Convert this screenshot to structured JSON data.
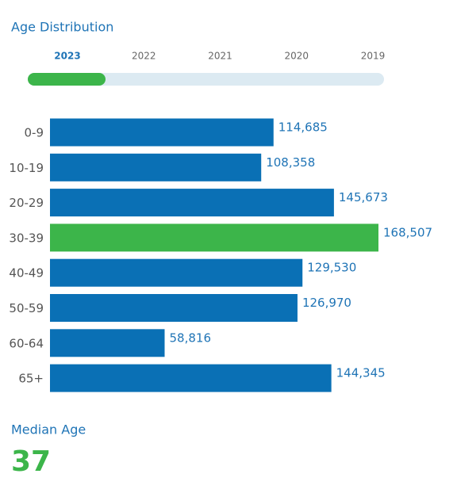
{
  "chart_data": {
    "type": "bar",
    "orientation": "horizontal",
    "title": "Age Distribution",
    "categories": [
      "0-9",
      "10-19",
      "20-29",
      "30-39",
      "40-49",
      "50-59",
      "60-64",
      "65+"
    ],
    "values": [
      114685,
      108358,
      145673,
      168507,
      129530,
      126970,
      58816,
      144345
    ],
    "value_labels": [
      "114,685",
      "108,358",
      "145,673",
      "168,507",
      "129,530",
      "126,970",
      "58,816",
      "144,345"
    ],
    "colors": [
      "#0a70b5",
      "#0a70b5",
      "#0a70b5",
      "#3cb54a",
      "#0a70b5",
      "#0a70b5",
      "#0a70b5",
      "#0a70b5"
    ]
  },
  "years": {
    "options": [
      "2023",
      "2022",
      "2021",
      "2020",
      "2019"
    ],
    "selected_index": 0
  },
  "median": {
    "label": "Median Age",
    "value": 37
  }
}
